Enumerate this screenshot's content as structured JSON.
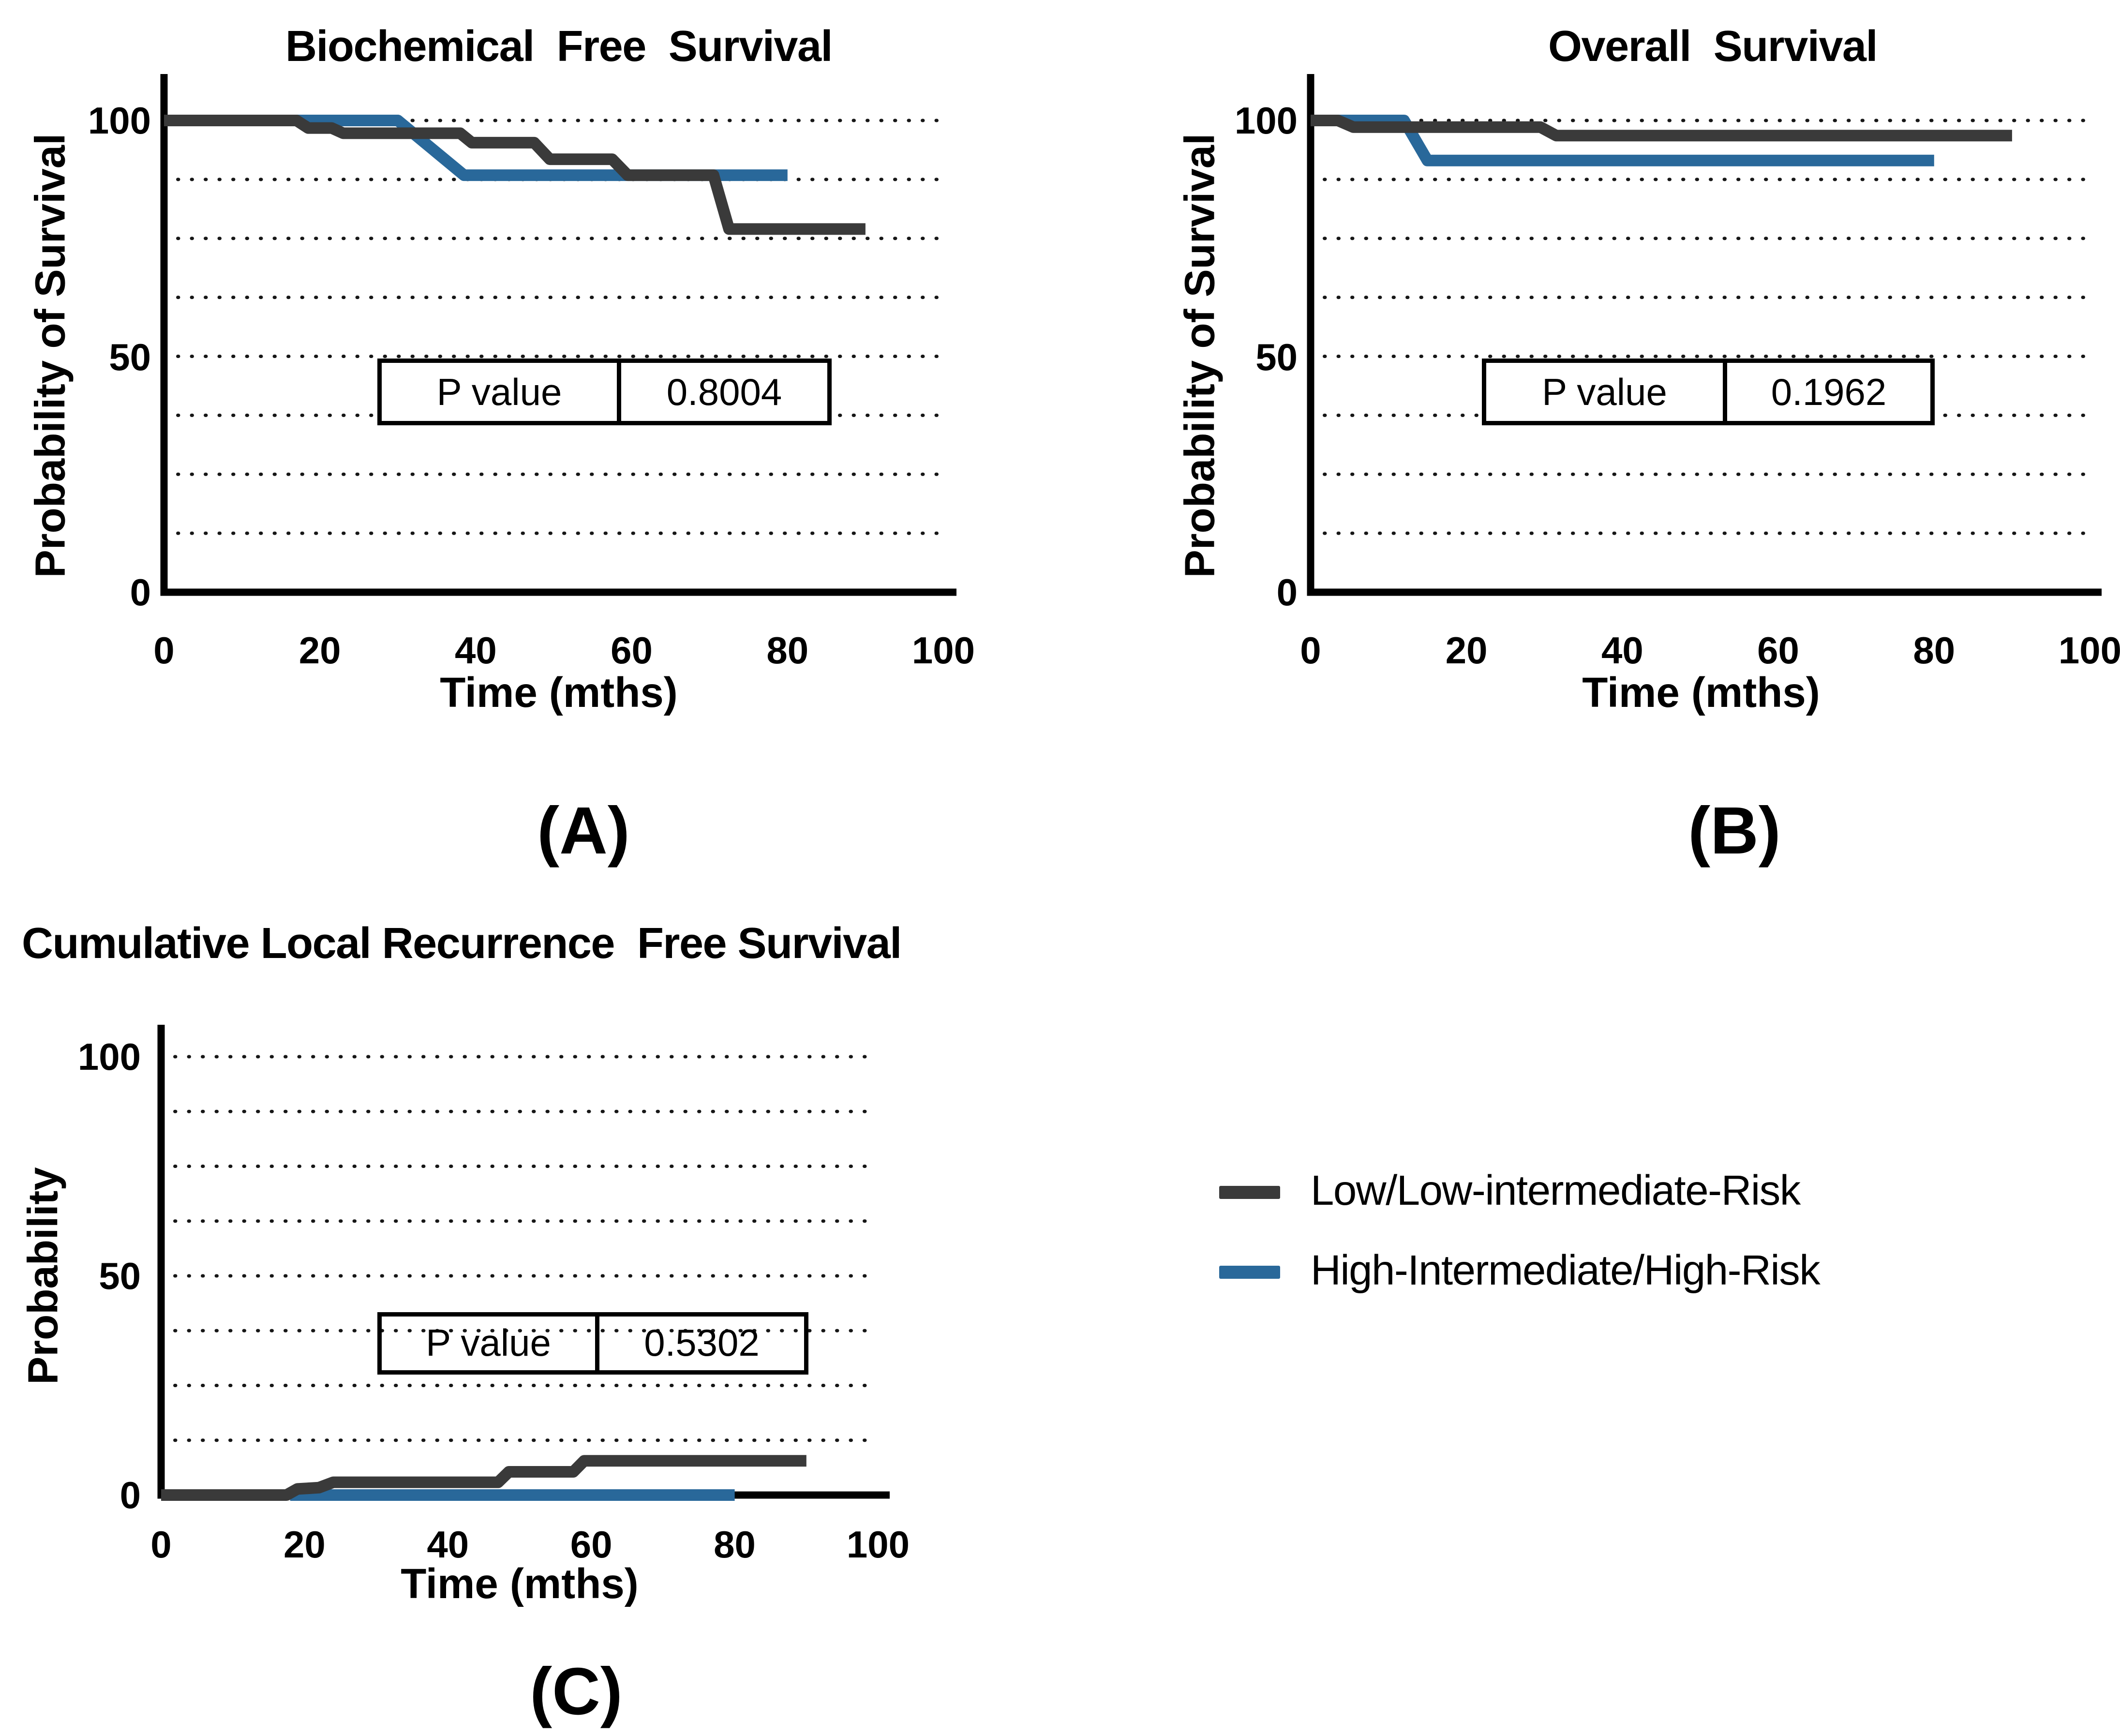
{
  "colors": {
    "dark": "#3A3A3A",
    "blue": "#29689A",
    "axis": "#000000",
    "grid": "#161616"
  },
  "legend": {
    "items": [
      {
        "label": "Low/Low-intermediate-Risk",
        "color_key": "dark"
      },
      {
        "label": "High-Intermediate/High-Risk",
        "color_key": "blue"
      }
    ]
  },
  "chart_data": [
    {
      "id": "A",
      "type": "line",
      "subtype": "kaplan-meier-step",
      "title": "Biochemical  Free  Survival",
      "xlabel": "Time (mths)",
      "ylabel": "Probability of Survival",
      "panel_letter": "(A)",
      "p_label": "P value",
      "p_value": "0.8004",
      "xlim": [
        0,
        100
      ],
      "ylim": [
        0,
        100
      ],
      "x_ticks": [
        0,
        20,
        40,
        60,
        80,
        100
      ],
      "y_ticks": [
        0,
        50,
        100
      ],
      "gridlines_y": [
        12.5,
        25,
        37.5,
        50,
        62.5,
        75,
        87.5,
        100
      ],
      "grid_style": "dotted",
      "series": [
        {
          "name": "Low/Low-intermediate-Risk",
          "color_key": "dark",
          "points": [
            [
              0,
              100
            ],
            [
              17,
              100
            ],
            [
              18.5,
              98.4
            ],
            [
              21.5,
              98.4
            ],
            [
              23,
              97.3
            ],
            [
              38,
              97.3
            ],
            [
              39.5,
              95.3
            ],
            [
              47.5,
              95.3
            ],
            [
              49.5,
              91.8
            ],
            [
              57.5,
              91.8
            ],
            [
              59.5,
              88.4
            ],
            [
              70.5,
              88.4
            ],
            [
              72.5,
              77
            ],
            [
              90,
              77
            ]
          ]
        },
        {
          "name": "High-Intermediate/High-Risk",
          "color_key": "blue",
          "points": [
            [
              0,
              100
            ],
            [
              30,
              100
            ],
            [
              38.5,
              88.4
            ],
            [
              80,
              88.4
            ]
          ]
        }
      ]
    },
    {
      "id": "B",
      "type": "line",
      "subtype": "kaplan-meier-step",
      "title": "Overall  Survival",
      "xlabel": "Time (mths)",
      "ylabel": "Probability of Survival",
      "panel_letter": "(B)",
      "p_label": "P value",
      "p_value": "0.1962",
      "xlim": [
        0,
        100
      ],
      "ylim": [
        0,
        100
      ],
      "x_ticks": [
        0,
        20,
        40,
        60,
        80,
        100
      ],
      "y_ticks": [
        0,
        50,
        100
      ],
      "gridlines_y": [
        12.5,
        25,
        37.5,
        50,
        62.5,
        75,
        87.5,
        100
      ],
      "grid_style": "dotted",
      "series": [
        {
          "name": "Low/Low-intermediate-Risk",
          "color_key": "dark",
          "points": [
            [
              0,
              100
            ],
            [
              3.5,
              100
            ],
            [
              5.5,
              98.6
            ],
            [
              29.5,
              98.6
            ],
            [
              31.5,
              96.8
            ],
            [
              90,
              96.8
            ]
          ]
        },
        {
          "name": "High-Intermediate/High-Risk",
          "color_key": "blue",
          "points": [
            [
              0,
              100
            ],
            [
              12,
              100
            ],
            [
              15,
              91.5
            ],
            [
              80,
              91.5
            ]
          ]
        }
      ]
    },
    {
      "id": "C",
      "type": "line",
      "subtype": "kaplan-meier-step",
      "title": "Cumulative Local Recurrence  Free Survival",
      "xlabel": "Time (mths)",
      "ylabel": "Probability",
      "panel_letter": "(C)",
      "p_label": "P value",
      "p_value": "0.5302",
      "xlim": [
        0,
        100
      ],
      "ylim": [
        0,
        100
      ],
      "x_ticks": [
        0,
        20,
        40,
        60,
        80,
        100
      ],
      "y_ticks": [
        0,
        50,
        100
      ],
      "gridlines_y": [
        12.5,
        25,
        37.5,
        50,
        62.5,
        75,
        87.5,
        100
      ],
      "grid_style": "dotted",
      "series": [
        {
          "name": "Low/Low-intermediate-Risk",
          "color_key": "dark",
          "points": [
            [
              0,
              0
            ],
            [
              17.5,
              0
            ],
            [
              19,
              1.4
            ],
            [
              22,
              1.7
            ],
            [
              24,
              2.9
            ],
            [
              47,
              2.9
            ],
            [
              48.5,
              5.3
            ],
            [
              57.5,
              5.3
            ],
            [
              59,
              7.8
            ],
            [
              90,
              7.8
            ]
          ]
        },
        {
          "name": "High-Intermediate/High-Risk",
          "color_key": "blue",
          "points": [
            [
              18,
              0
            ],
            [
              80,
              0
            ]
          ]
        }
      ]
    }
  ]
}
